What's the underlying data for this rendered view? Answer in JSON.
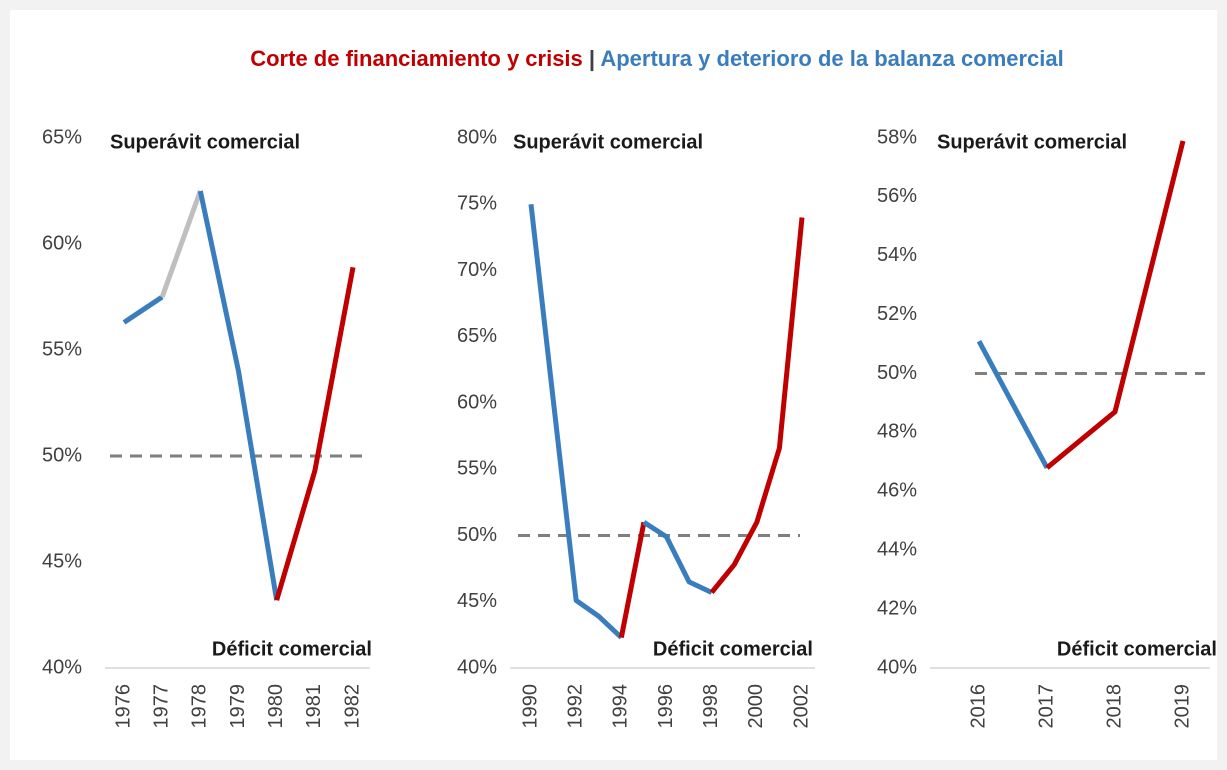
{
  "title_parts": [
    {
      "text": "Corte de financiamiento y crisis",
      "color": "#c00000"
    },
    {
      "text": " | ",
      "color": "#404040"
    },
    {
      "text": "Apertura y deterioro de la balanza comercial",
      "color": "#3a7dbf"
    }
  ],
  "chart_data": [
    {
      "type": "line",
      "x": [
        1976,
        1977,
        1978,
        1979,
        1980,
        1981,
        1982
      ],
      "xlim": [
        1976,
        1982
      ],
      "xticks": [
        1976,
        1977,
        1978,
        1979,
        1980,
        1981,
        1982
      ],
      "ylim": [
        40,
        65
      ],
      "yticks": [
        {
          "value": 40,
          "label": "40%"
        },
        {
          "value": 45,
          "label": "45%"
        },
        {
          "value": 50,
          "label": "50%"
        },
        {
          "value": 55,
          "label": "55%"
        },
        {
          "value": 60,
          "label": "60%"
        },
        {
          "value": 65,
          "label": "65%"
        }
      ],
      "reference_line": 50,
      "annotations": [
        "Superávit comercial",
        "Déficit comercial"
      ],
      "series": [
        {
          "color": "#3a7dbf",
          "values": [
            56.3,
            57.5,
            null,
            null,
            null,
            null,
            null
          ]
        },
        {
          "color": "#bfbfbf",
          "values": [
            null,
            57.5,
            62.5,
            null,
            null,
            null,
            null
          ]
        },
        {
          "color": "#3a7dbf",
          "values": [
            null,
            null,
            62.5,
            54.0,
            43.2,
            null,
            null
          ]
        },
        {
          "color": "#c00000",
          "values": [
            null,
            null,
            null,
            null,
            43.2,
            49.3,
            58.9
          ]
        }
      ]
    },
    {
      "type": "line",
      "x": [
        1990,
        1991,
        1992,
        1993,
        1994,
        1995,
        1996,
        1997,
        1998,
        1999,
        2000,
        2001,
        2002
      ],
      "xlim": [
        1990,
        2002
      ],
      "xticks": [
        1990,
        1992,
        1994,
        1996,
        1998,
        2000,
        2002
      ],
      "ylim": [
        40,
        80
      ],
      "yticks": [
        {
          "value": 40,
          "label": "40%"
        },
        {
          "value": 45,
          "label": "45%"
        },
        {
          "value": 50,
          "label": "50%"
        },
        {
          "value": 55,
          "label": "55%"
        },
        {
          "value": 60,
          "label": "60%"
        },
        {
          "value": 65,
          "label": "65%"
        },
        {
          "value": 70,
          "label": "70%"
        },
        {
          "value": 75,
          "label": "75%"
        },
        {
          "value": 80,
          "label": "80%"
        }
      ],
      "reference_line": 50,
      "annotations": [
        "Superávit comercial",
        "Déficit comercial"
      ],
      "series": [
        {
          "color": "#3a7dbf",
          "values": [
            75.0,
            60.0,
            45.1,
            43.9,
            42.3,
            null,
            null,
            null,
            null,
            null,
            null,
            null,
            null
          ]
        },
        {
          "color": "#c00000",
          "values": [
            null,
            null,
            null,
            null,
            42.3,
            51.0,
            null,
            null,
            null,
            null,
            null,
            null,
            null
          ]
        },
        {
          "color": "#3a7dbf",
          "values": [
            null,
            null,
            null,
            null,
            null,
            51.0,
            49.9,
            46.5,
            45.7,
            null,
            null,
            null,
            null
          ]
        },
        {
          "color": "#c00000",
          "values": [
            null,
            null,
            null,
            null,
            null,
            null,
            null,
            null,
            45.7,
            47.8,
            51.0,
            56.6,
            74.0
          ]
        }
      ]
    },
    {
      "type": "line",
      "x": [
        2016,
        2017,
        2018,
        2019
      ],
      "xlim": [
        2016,
        2019
      ],
      "xticks": [
        2016,
        2017,
        2018,
        2019
      ],
      "ylim": [
        40,
        58
      ],
      "yticks": [
        {
          "value": 40,
          "label": "40%"
        },
        {
          "value": 42,
          "label": "42%"
        },
        {
          "value": 44,
          "label": "44%"
        },
        {
          "value": 46,
          "label": "46%"
        },
        {
          "value": 48,
          "label": "48%"
        },
        {
          "value": 50,
          "label": "50%"
        },
        {
          "value": 52,
          "label": "52%"
        },
        {
          "value": 54,
          "label": "54%"
        },
        {
          "value": 56,
          "label": "56%"
        },
        {
          "value": 58,
          "label": "58%"
        }
      ],
      "reference_line": 50,
      "annotations": [
        "Superávit comercial",
        "Déficit comercial"
      ],
      "series": [
        {
          "color": "#3a7dbf",
          "values": [
            51.1,
            46.8,
            null,
            null
          ]
        },
        {
          "color": "#c00000",
          "values": [
            null,
            46.8,
            48.7,
            57.9
          ]
        }
      ]
    }
  ]
}
